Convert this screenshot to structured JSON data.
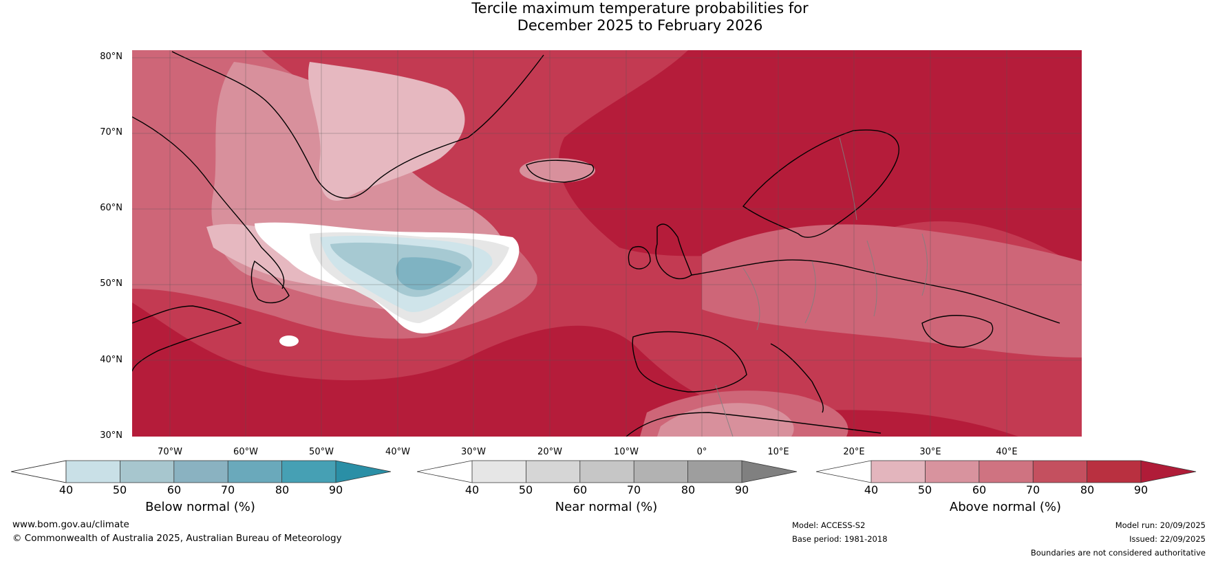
{
  "title": {
    "line1": "Tercile maximum temperature probabilities for",
    "line2": "December 2025 to February 2026"
  },
  "map": {
    "lat_labels": [
      "80°N",
      "70°N",
      "60°N",
      "50°N",
      "40°N",
      "30°N"
    ],
    "lon_labels": [
      "70°W",
      "60°W",
      "50°W",
      "40°W",
      "30°W",
      "20°W",
      "10°W",
      "0°",
      "10°E",
      "20°E",
      "30°E",
      "40°E"
    ],
    "colors": {
      "above_90": "#b51c3a",
      "above_80": "#c33a52",
      "above_70": "#ce6678",
      "above_60": "#d8909c",
      "above_50": "#e6b8c0",
      "white": "#ffffff",
      "near_40": "#e6e6e6",
      "below_50": "#cfe4ea",
      "below_60": "#a6c9d2",
      "below_70": "#7fb3c2",
      "below_80": "#5ea5b6",
      "coast": "#000000",
      "border": "#808080"
    }
  },
  "colorbars": [
    {
      "title": "Below normal (%)",
      "ticks": [
        "40",
        "50",
        "60",
        "70",
        "80",
        "90"
      ],
      "colors": [
        "#ffffff",
        "#c9e0e7",
        "#a7c6ce",
        "#8ab2c1",
        "#6aa9bb",
        "#46a0b4",
        "#2a8fa6"
      ]
    },
    {
      "title": "Near normal (%)",
      "ticks": [
        "40",
        "50",
        "60",
        "70",
        "80",
        "90"
      ],
      "colors": [
        "#ffffff",
        "#e6e6e6",
        "#d6d6d6",
        "#c6c6c6",
        "#b2b2b2",
        "#9e9e9e",
        "#808080"
      ]
    },
    {
      "title": "Above normal (%)",
      "ticks": [
        "40",
        "50",
        "60",
        "70",
        "80",
        "90"
      ],
      "colors": [
        "#ffffff",
        "#e3b5bd",
        "#d8939e",
        "#cf7381",
        "#c4505f",
        "#b93040",
        "#b01c38"
      ]
    }
  ],
  "footer": {
    "website": "www.bom.gov.au/climate",
    "copyright": "© Commonwealth of Australia 2025, Australian Bureau of Meteorology",
    "model": "Model: ACCESS-S2",
    "base_period": "Base period: 1981-2018",
    "model_run": "Model run: 20/09/2025",
    "issued": "Issued: 22/09/2025",
    "disclaimer": "Boundaries are not considered authoritative"
  }
}
